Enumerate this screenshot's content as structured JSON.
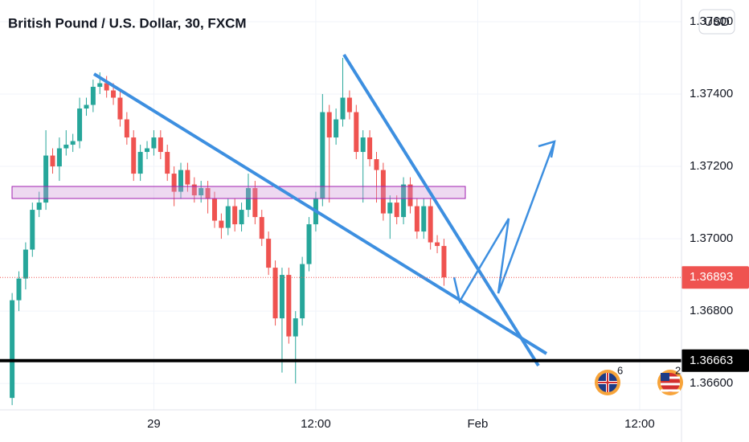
{
  "chart_data": {
    "type": "candlestick",
    "title": "British Pound / U.S. Dollar, 30, FXCM",
    "currency": "USD",
    "up_color": "#26a69a",
    "down_color": "#ef5350",
    "open": [
      1.3656,
      1.3683,
      1.3689,
      1.3697,
      1.3708,
      1.371,
      1.3723,
      1.372,
      1.3725,
      1.3726,
      1.3727,
      1.3736,
      1.3737,
      1.3742,
      1.3743,
      1.3741,
      1.3739,
      1.3733,
      1.3728,
      1.3718,
      1.3724,
      1.3725,
      1.3728,
      1.3724,
      1.3718,
      1.3713,
      1.3719,
      1.3715,
      1.3712,
      1.3714,
      1.3711,
      1.3705,
      1.3703,
      1.3709,
      1.3704,
      1.3708,
      1.3714,
      1.3706,
      1.37,
      1.3692,
      1.3678,
      1.369,
      1.3673,
      1.3678,
      1.3693,
      1.3704,
      1.3711,
      1.3735,
      1.3728,
      1.3733,
      1.3739,
      1.3735,
      1.3724,
      1.3728,
      1.3722,
      1.3719,
      1.3707,
      1.371,
      1.3706,
      1.3715,
      1.3709,
      1.3702,
      1.3709,
      1.3699,
      1.3698
    ],
    "high": [
      1.3685,
      1.3691,
      1.3699,
      1.371,
      1.3713,
      1.373,
      1.3725,
      1.3728,
      1.373,
      1.3729,
      1.3739,
      1.3739,
      1.3744,
      1.3746,
      1.3745,
      1.3743,
      1.3741,
      1.3735,
      1.373,
      1.3726,
      1.3727,
      1.373,
      1.373,
      1.3726,
      1.372,
      1.3721,
      1.3721,
      1.3717,
      1.3716,
      1.3716,
      1.3713,
      1.3707,
      1.3711,
      1.3711,
      1.371,
      1.3718,
      1.3716,
      1.3708,
      1.3702,
      1.3694,
      1.3692,
      1.3692,
      1.368,
      1.3695,
      1.3706,
      1.3713,
      1.374,
      1.3737,
      1.3736,
      1.375,
      1.3741,
      1.3737,
      1.373,
      1.373,
      1.3724,
      1.3721,
      1.3712,
      1.3712,
      1.3717,
      1.3717,
      1.3711,
      1.3711,
      1.3711,
      1.3701,
      1.37
    ],
    "low": [
      1.3654,
      1.368,
      1.3686,
      1.3695,
      1.3706,
      1.3708,
      1.3718,
      1.3716,
      1.3723,
      1.3724,
      1.3725,
      1.3734,
      1.3735,
      1.374,
      1.3739,
      1.3737,
      1.3731,
      1.3726,
      1.3716,
      1.3716,
      1.3722,
      1.3723,
      1.3722,
      1.3716,
      1.3709,
      1.3711,
      1.3713,
      1.371,
      1.371,
      1.3707,
      1.3703,
      1.37,
      1.3701,
      1.3702,
      1.3702,
      1.3706,
      1.3704,
      1.3698,
      1.369,
      1.3676,
      1.3663,
      1.3671,
      1.366,
      1.3676,
      1.3691,
      1.3702,
      1.3709,
      1.371,
      1.3726,
      1.3731,
      1.3733,
      1.3722,
      1.371,
      1.372,
      1.371,
      1.3705,
      1.37,
      1.3704,
      1.3704,
      1.3707,
      1.37,
      1.37,
      1.3697,
      1.3696,
      1.3687
    ],
    "close": [
      1.3683,
      1.3689,
      1.3697,
      1.3708,
      1.371,
      1.3723,
      1.372,
      1.3725,
      1.3726,
      1.3727,
      1.3736,
      1.3737,
      1.3742,
      1.3743,
      1.3741,
      1.3739,
      1.3733,
      1.3728,
      1.3718,
      1.3724,
      1.3725,
      1.3728,
      1.3724,
      1.3718,
      1.3713,
      1.3719,
      1.3715,
      1.3712,
      1.3714,
      1.3711,
      1.3705,
      1.3703,
      1.3709,
      1.3704,
      1.3708,
      1.3714,
      1.3706,
      1.37,
      1.3692,
      1.3678,
      1.369,
      1.3673,
      1.3678,
      1.3693,
      1.3704,
      1.3711,
      1.3735,
      1.3728,
      1.3733,
      1.3739,
      1.3735,
      1.3724,
      1.3728,
      1.3722,
      1.3719,
      1.3707,
      1.371,
      1.3706,
      1.3715,
      1.3709,
      1.3702,
      1.3709,
      1.3699,
      1.3698,
      1.36893
    ],
    "xlim": [
      -1.8,
      99.2
    ],
    "xticks": [
      {
        "value": 21,
        "label": "29"
      },
      {
        "value": 45,
        "label": "12:00"
      },
      {
        "value": 69,
        "label": "Feb"
      },
      {
        "value": 93,
        "label": "12:00"
      }
    ],
    "ylim": [
      1.36527,
      1.3766
    ],
    "yticks": [
      {
        "value": 1.366,
        "label": "1.36600"
      },
      {
        "value": 1.368,
        "label": "1.36800"
      },
      {
        "value": 1.37,
        "label": "1.37000"
      },
      {
        "value": 1.372,
        "label": "1.37200"
      },
      {
        "value": 1.374,
        "label": "1.37400"
      },
      {
        "value": 1.376,
        "label": "1.37600"
      }
    ],
    "grid": true,
    "last_price": {
      "value": 1.36893,
      "label": "1.36893"
    },
    "horizontal_line": {
      "value": 1.36663,
      "label": "1.36663"
    },
    "event_badges": [
      "6",
      "2"
    ]
  }
}
